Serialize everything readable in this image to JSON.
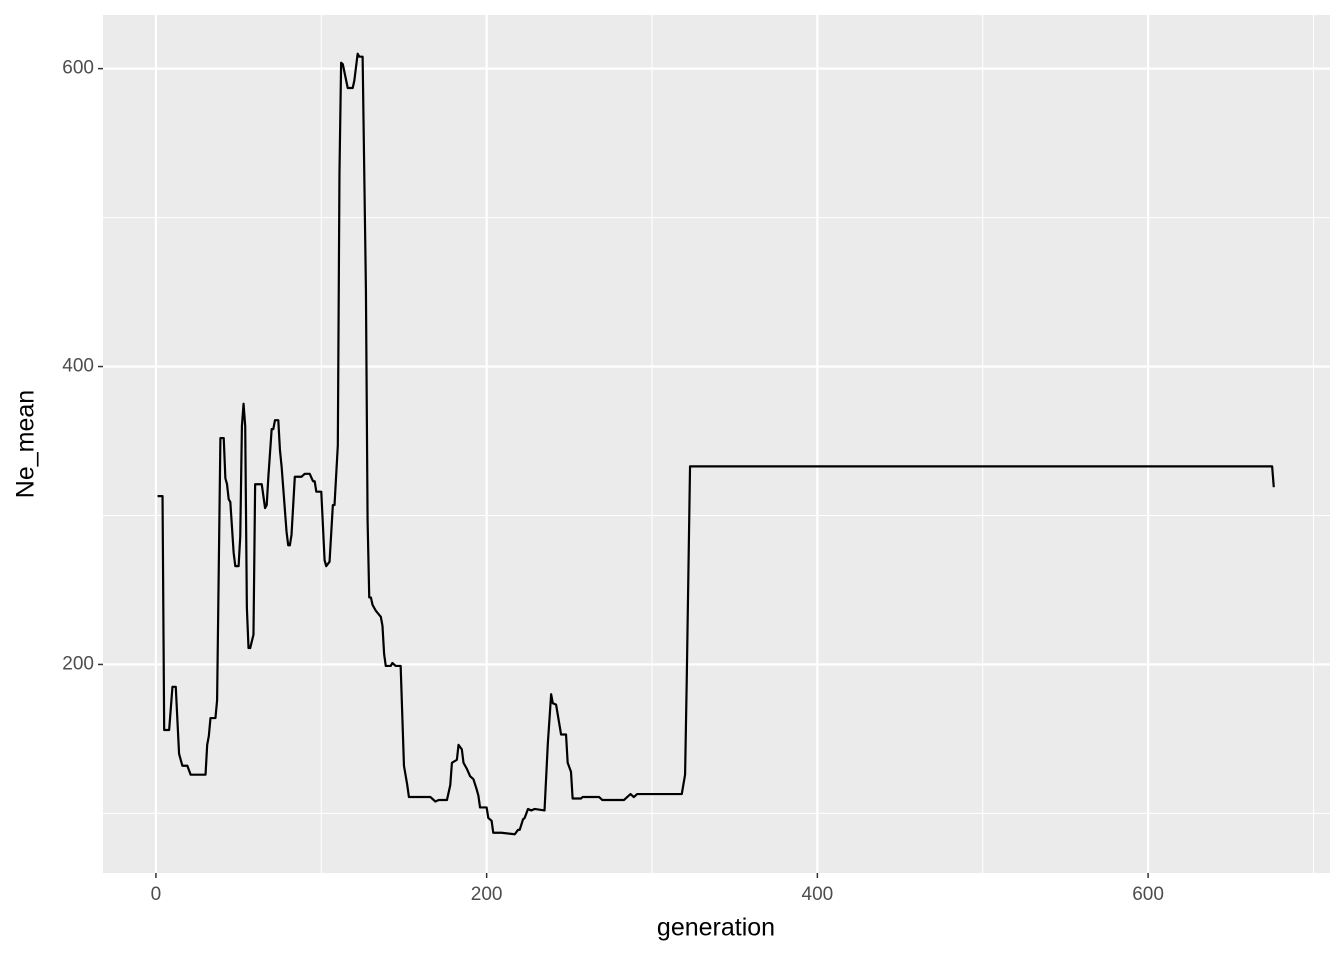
{
  "chart_data": {
    "type": "line",
    "x_label": "generation",
    "y_label": "Ne_mean",
    "x": [
      1,
      4,
      5,
      8,
      10,
      12,
      14,
      16,
      19,
      21,
      26,
      30,
      31,
      32,
      33,
      36,
      37,
      39,
      41,
      42,
      43,
      44,
      45,
      47,
      48,
      50,
      51,
      52,
      53,
      54,
      55,
      56,
      57,
      59,
      60,
      64,
      66,
      67,
      68,
      70,
      71,
      72,
      74,
      75,
      76,
      79,
      80,
      81,
      82,
      84,
      88,
      90,
      93,
      95,
      96,
      97,
      100,
      102,
      103,
      105,
      107,
      108,
      110,
      111,
      112,
      113,
      116,
      119,
      120,
      122,
      123,
      125,
      127,
      128,
      129,
      130,
      131,
      133,
      136,
      137,
      138,
      139,
      142,
      143,
      145,
      148,
      150,
      152,
      153,
      166,
      169,
      171,
      176,
      178,
      179,
      182,
      183,
      185,
      186,
      188,
      190,
      191,
      192,
      194,
      195,
      196,
      200,
      201,
      203,
      204,
      206,
      209,
      217,
      219,
      220,
      222,
      223,
      225,
      227,
      229,
      235,
      237,
      239,
      240,
      242,
      245,
      248,
      249,
      251,
      252,
      257,
      258,
      268,
      270,
      283,
      285,
      287,
      289,
      291,
      318,
      320,
      321,
      323,
      675,
      676
    ],
    "values": [
      313,
      313,
      156,
      156,
      185,
      185,
      140,
      132,
      132,
      126,
      126,
      126,
      146,
      152,
      164,
      164,
      176,
      352,
      352,
      325,
      321,
      311,
      309,
      275,
      266,
      266,
      286,
      360,
      375,
      360,
      238,
      211,
      211,
      220,
      321,
      321,
      305,
      307,
      326,
      358,
      358,
      364,
      364,
      344,
      333,
      289,
      280,
      280,
      287,
      326,
      326,
      328,
      328,
      323,
      323,
      316,
      316,
      270,
      266,
      269,
      307,
      307,
      347,
      530,
      604,
      603,
      587,
      587,
      592,
      610,
      608,
      608,
      451,
      297,
      245,
      245,
      240,
      236,
      232,
      226,
      207,
      199,
      199,
      201,
      199,
      199,
      132,
      119,
      111,
      111,
      108,
      109,
      109,
      119,
      134,
      136,
      146,
      143,
      134,
      130,
      125,
      124,
      123,
      116,
      112,
      104,
      104,
      97,
      95,
      87,
      87,
      87,
      86,
      89,
      89,
      96,
      97,
      103,
      102,
      103,
      102,
      147,
      180,
      174,
      173,
      153,
      153,
      134,
      128,
      110,
      110,
      111,
      111,
      109,
      109,
      111,
      113,
      111,
      113,
      113,
      126,
      189,
      333,
      333,
      319
    ],
    "color": "#000000",
    "xlim": [
      -32,
      710
    ],
    "ylim": [
      60,
      636
    ],
    "xticks": [
      0,
      200,
      400,
      600
    ],
    "yticks": [
      200,
      400,
      600
    ],
    "x_minor_grid": [
      100,
      300,
      500,
      700
    ],
    "y_minor_grid": [
      100,
      300,
      500
    ],
    "grid": true
  }
}
